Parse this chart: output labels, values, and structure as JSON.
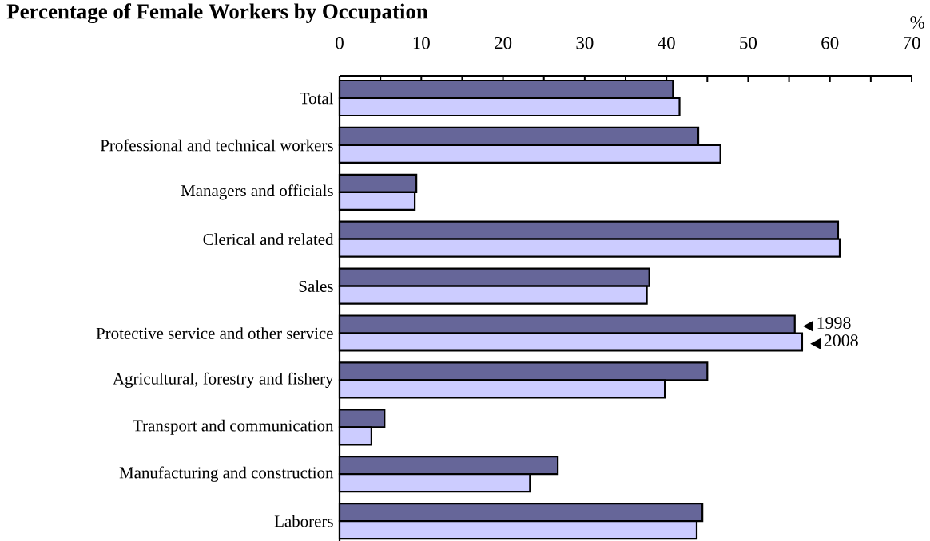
{
  "chart_data": {
    "type": "bar",
    "orientation": "horizontal",
    "title": "Percentage of Female Workers by Occupation",
    "xlabel": "%",
    "categories": [
      "Total",
      "Professional and technical workers",
      "Managers and officials",
      "Clerical and related",
      "Sales",
      "Protective service and other service",
      "Agricultural, forestry and fishery",
      "Transport and communication",
      "Manufacturing and construction",
      "Laborers"
    ],
    "series": [
      {
        "name": "1998",
        "color": "#666699",
        "values": [
          40.8,
          43.9,
          9.4,
          61.0,
          37.9,
          55.7,
          45.0,
          5.5,
          26.7,
          44.4
        ]
      },
      {
        "name": "2008",
        "color": "#ccccff",
        "values": [
          41.6,
          46.6,
          9.2,
          61.2,
          37.6,
          56.6,
          39.8,
          3.9,
          23.3,
          43.7
        ]
      }
    ],
    "xlim": [
      0,
      70
    ],
    "xticks": [
      0,
      10,
      20,
      30,
      40,
      50,
      60,
      70
    ],
    "grid": false
  }
}
